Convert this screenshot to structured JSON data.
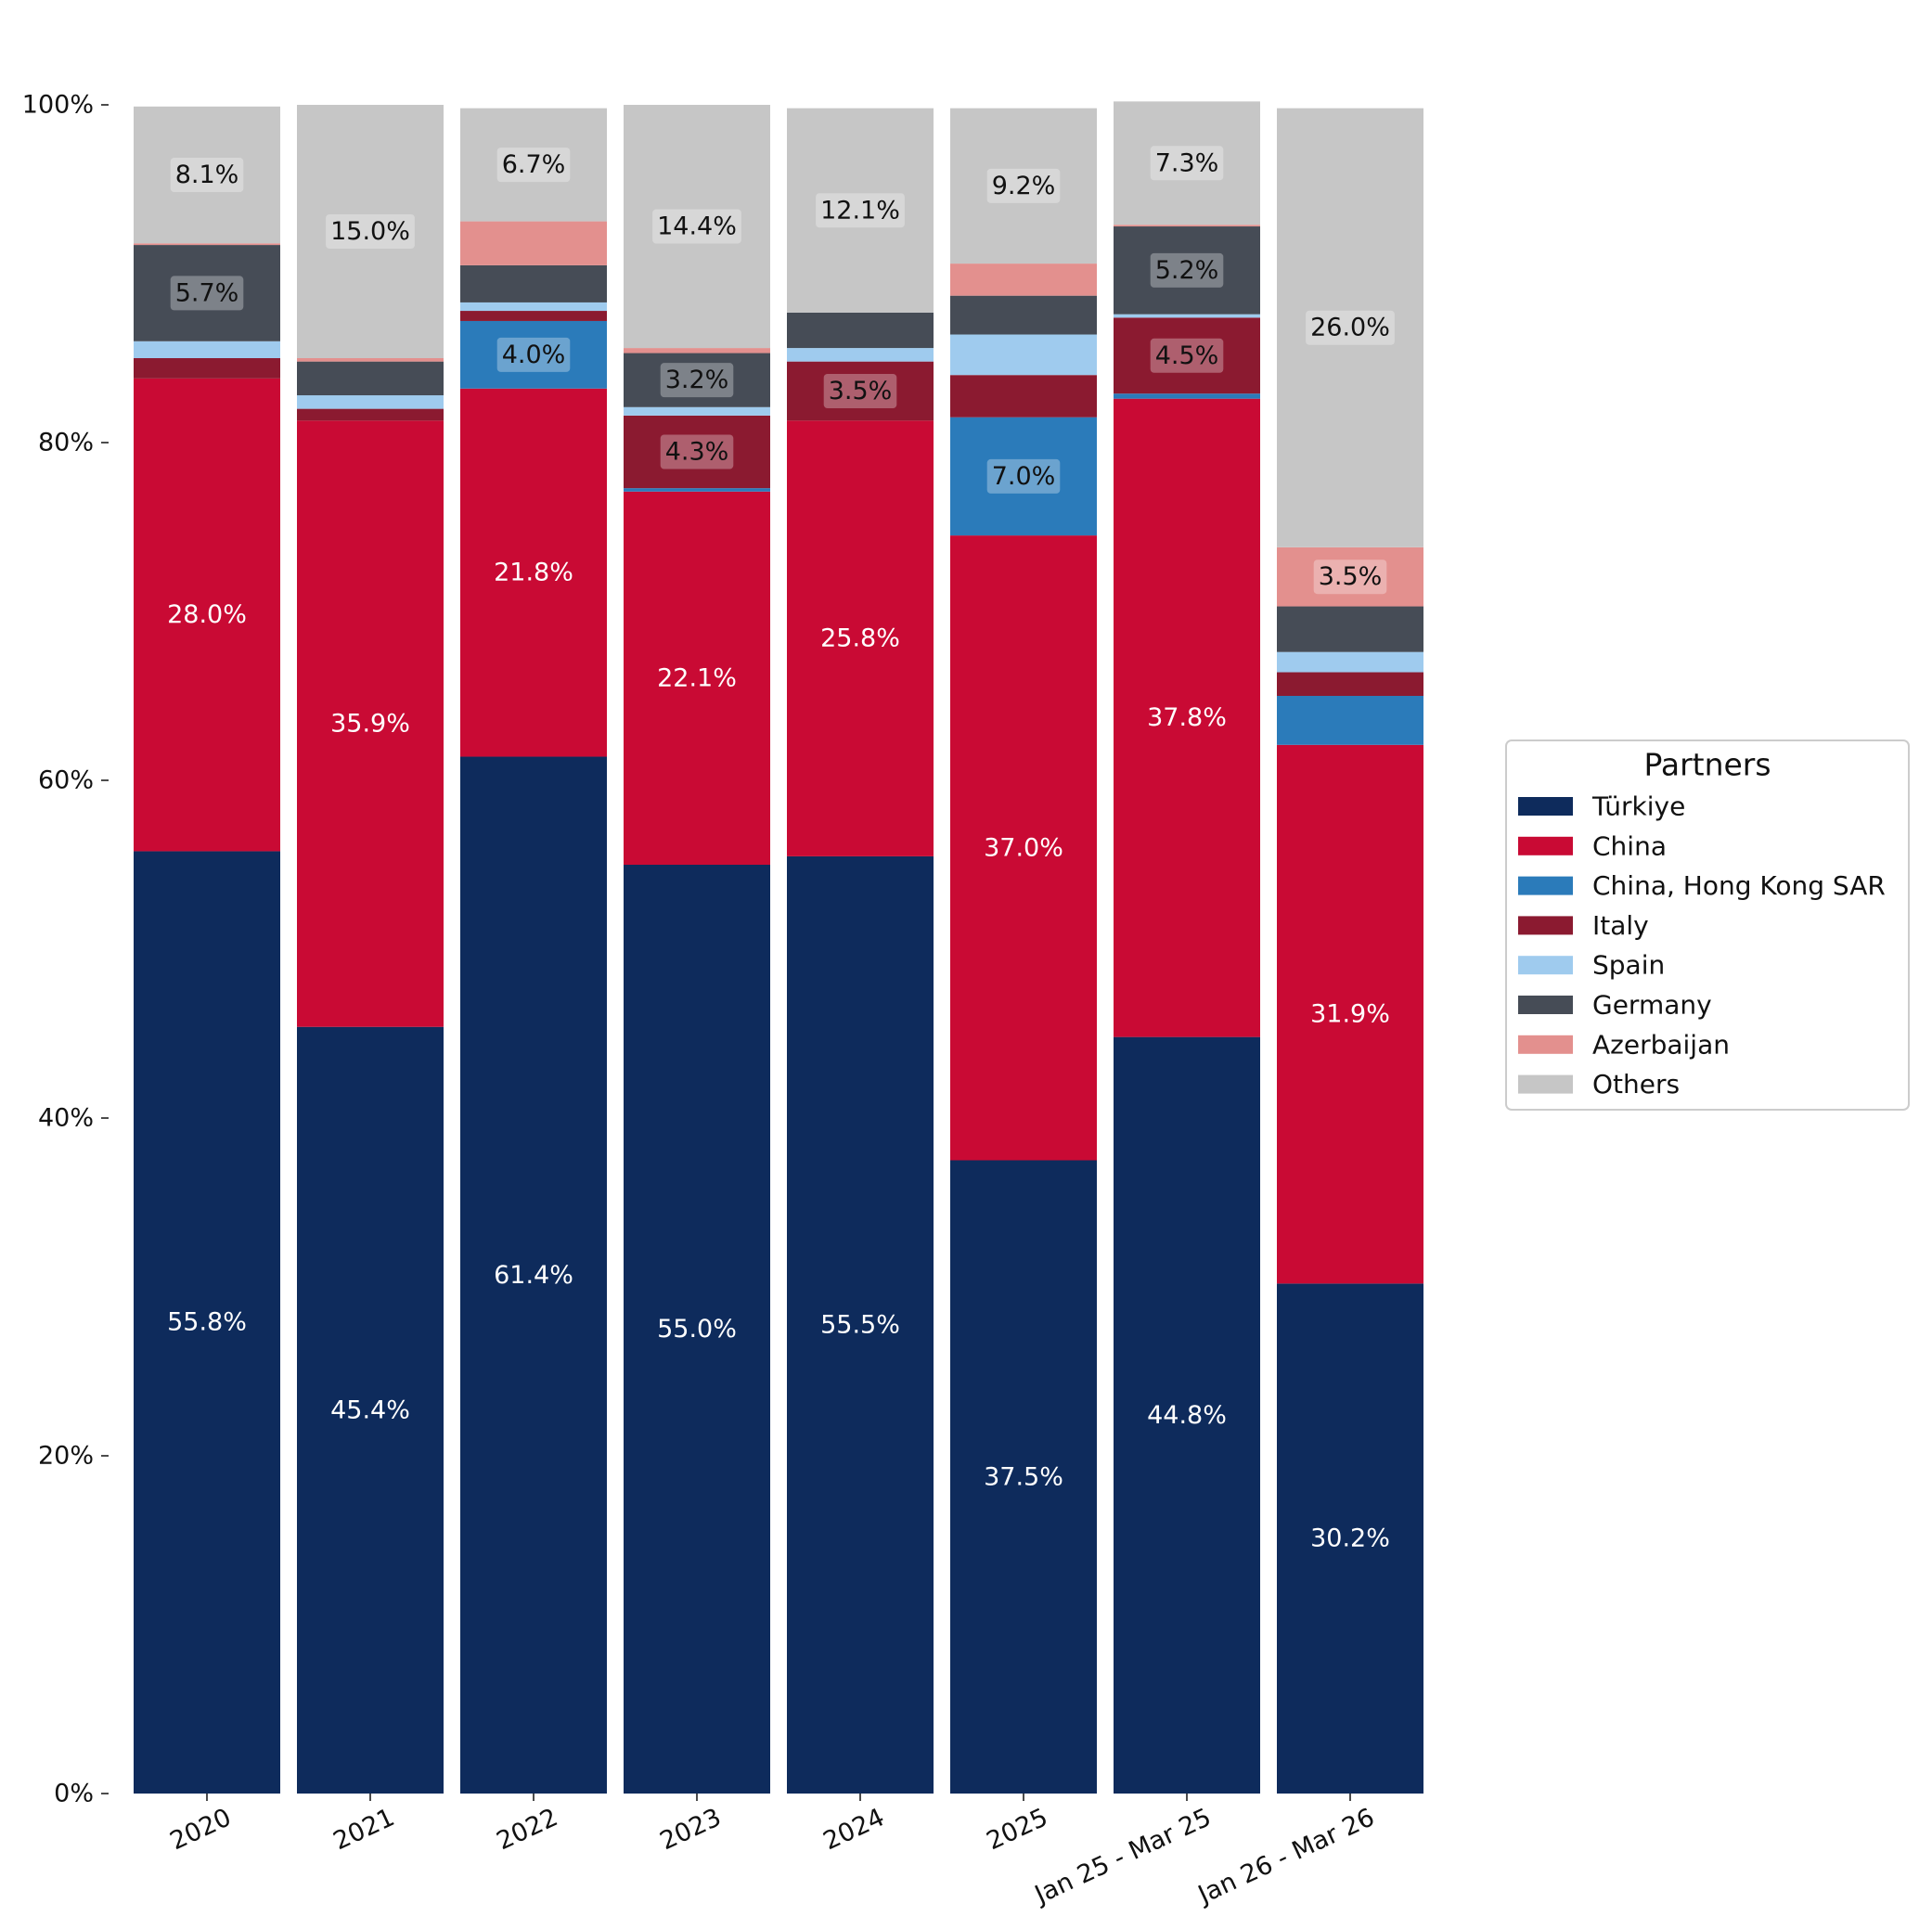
{
  "chart_data": {
    "type": "bar",
    "stacked": true,
    "categories": [
      "2020",
      "2021",
      "2022",
      "2023",
      "2024",
      "2025",
      "Jan 25 - Mar 25",
      "Jan 26 - Mar 26"
    ],
    "ylim": [
      0,
      100
    ],
    "yticks": [
      "0%",
      "20%",
      "40%",
      "60%",
      "80%",
      "100%"
    ],
    "ytick_values": [
      0,
      20,
      40,
      60,
      80,
      100
    ],
    "grid": false,
    "legend": {
      "title": "Partners",
      "placement": "right"
    },
    "series": [
      {
        "name": "Türkiye",
        "color": "#0e2b5c",
        "label_color": "#ffffff",
        "values": [
          55.8,
          45.4,
          61.4,
          55.0,
          55.5,
          37.5,
          44.8,
          30.2
        ],
        "labels": [
          "55.8%",
          "45.4%",
          "61.4%",
          "55.0%",
          "55.5%",
          "37.5%",
          "44.8%",
          "30.2%"
        ]
      },
      {
        "name": "China",
        "color": "#c90a34",
        "label_color": "#ffffff",
        "values": [
          28.0,
          35.9,
          21.8,
          22.1,
          25.8,
          37.0,
          37.8,
          31.9
        ],
        "labels": [
          "28.0%",
          "35.9%",
          "21.8%",
          "22.1%",
          "25.8%",
          "37.0%",
          "37.8%",
          "31.9%"
        ]
      },
      {
        "name": "China, Hong Kong SAR",
        "color": "#2b7bba",
        "label_color": "#111111",
        "values": [
          0.0,
          0.0,
          4.0,
          0.2,
          0.0,
          7.0,
          0.3,
          2.9
        ],
        "labels": [
          "",
          "",
          "4.0%",
          "",
          "",
          "7.0%",
          "",
          ""
        ]
      },
      {
        "name": "Italy",
        "color": "#8b1a30",
        "label_color": "#111111",
        "values": [
          1.2,
          0.7,
          0.6,
          4.3,
          3.5,
          2.5,
          4.5,
          1.4
        ],
        "labels": [
          "",
          "",
          "",
          "4.3%",
          "3.5%",
          "",
          "4.5%",
          ""
        ]
      },
      {
        "name": "Spain",
        "color": "#9fcbee",
        "label_color": "#111111",
        "values": [
          1.0,
          0.8,
          0.5,
          0.5,
          0.8,
          2.4,
          0.2,
          1.2
        ],
        "labels": [
          "",
          "",
          "",
          "",
          "",
          "",
          "",
          ""
        ]
      },
      {
        "name": "Germany",
        "color": "#464c56",
        "label_color": "#111111",
        "values": [
          5.7,
          2.0,
          2.2,
          3.2,
          2.1,
          2.3,
          5.2,
          2.7
        ],
        "labels": [
          "5.7%",
          "",
          "",
          "3.2%",
          "",
          "",
          "5.2%",
          ""
        ]
      },
      {
        "name": "Azerbaijan",
        "color": "#e3908e",
        "label_color": "#111111",
        "values": [
          0.1,
          0.2,
          2.6,
          0.3,
          0.0,
          1.9,
          0.1,
          3.5
        ],
        "labels": [
          "",
          "",
          "",
          "",
          "",
          "",
          "",
          "3.5%"
        ]
      },
      {
        "name": "Others",
        "color": "#c6c6c6",
        "label_color": "#111111",
        "values": [
          8.1,
          15.0,
          6.7,
          14.4,
          12.1,
          9.2,
          7.3,
          26.0
        ],
        "labels": [
          "8.1%",
          "15.0%",
          "6.7%",
          "14.4%",
          "12.1%",
          "9.2%",
          "7.3%",
          "26.0%"
        ]
      }
    ]
  }
}
